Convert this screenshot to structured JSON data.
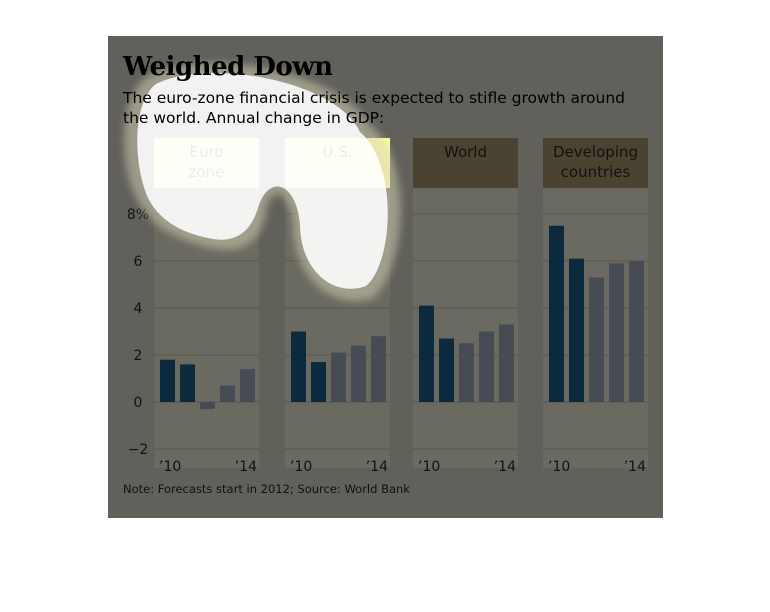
{
  "title": "Weighed Down",
  "subtitle": "The euro-zone financial crisis is expected to stifle growth around the world. Annual change in GDP:",
  "note": "Note: Forecasts start in 2012; Source: World Bank",
  "colors": {
    "background": "#61605a",
    "panel": "#6b6a60",
    "panel_header": "#4a4331",
    "panel_header_highlight": "#fbf8a0",
    "actual_bar": "#0c2a3d",
    "forecast_bar": "#474c54",
    "highlight": "#ffffff"
  },
  "chart_data": {
    "type": "bar",
    "ylim": [
      -2,
      8
    ],
    "y_ticks": [
      "8%",
      "6",
      "4",
      "2",
      "0",
      "−2"
    ],
    "y_tick_values": [
      8,
      6,
      4,
      2,
      0,
      -2
    ],
    "x_tick_first": "’10",
    "x_tick_last": "’14",
    "categories": [
      "2010",
      "2011",
      "2012",
      "2013",
      "2014"
    ],
    "forecast_start": "2012",
    "panels": [
      {
        "name": "Euro zone",
        "values": [
          1.8,
          1.6,
          -0.3,
          0.7,
          1.4
        ]
      },
      {
        "name": "U.S.",
        "values": [
          3.0,
          1.7,
          2.1,
          2.4,
          2.8
        ]
      },
      {
        "name": "World",
        "values": [
          4.1,
          2.7,
          2.5,
          3.0,
          3.3
        ]
      },
      {
        "name": "Developing countries",
        "values": [
          7.5,
          6.1,
          5.3,
          5.9,
          6.0
        ]
      }
    ]
  }
}
